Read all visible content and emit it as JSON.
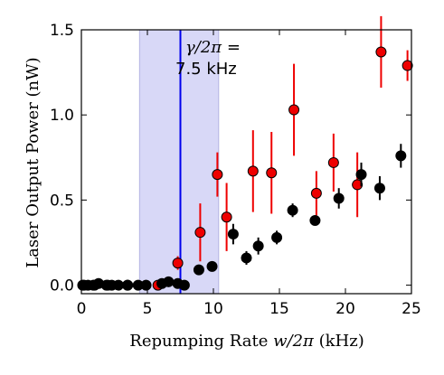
{
  "chart_data": {
    "type": "scatter",
    "xlabel_prefix": "Repumping Rate ",
    "xlabel_math": "w/2π",
    "xlabel_suffix": " (kHz)",
    "ylabel": "Laser Output Power (nW)",
    "xlim": [
      0,
      25
    ],
    "ylim": [
      -0.05,
      1.5
    ],
    "xticks": [
      0,
      5,
      10,
      15,
      20,
      25
    ],
    "xtick_labels": [
      "0",
      "5",
      "10",
      "15",
      "20",
      "25"
    ],
    "yticks": [
      0.0,
      0.5,
      1.0,
      1.5
    ],
    "ytick_labels": [
      "0.0",
      "0.5",
      "1.0",
      "1.5"
    ],
    "shaded_region": {
      "x_start": 4.4,
      "x_end": 10.4,
      "color": "#d8d8f7"
    },
    "vertical_line": {
      "x": 7.5,
      "color": "#0000ee"
    },
    "annotation": {
      "line1_math": "γ/2π",
      "line1_suffix": " =",
      "line2": "7.5 kHz"
    },
    "colors": {
      "red": "#ee0000",
      "black": "#000000",
      "error_red": "#ee0000"
    },
    "series": [
      {
        "color": "red",
        "points": [
          {
            "x": 0.2,
            "y": 0.0,
            "err": 0.0
          },
          {
            "x": 1.0,
            "y": 0.0,
            "err": 0.0
          },
          {
            "x": 2.0,
            "y": 0.0,
            "err": 0.0
          },
          {
            "x": 3.5,
            "y": 0.0,
            "err": 0.0
          },
          {
            "x": 5.8,
            "y": 0.0,
            "err": 0.0
          },
          {
            "x": 7.3,
            "y": 0.13,
            "err": 0.04
          },
          {
            "x": 9.0,
            "y": 0.31,
            "err": 0.17
          },
          {
            "x": 10.3,
            "y": 0.65,
            "err": 0.13
          },
          {
            "x": 11.0,
            "y": 0.4,
            "err": 0.2
          },
          {
            "x": 13.0,
            "y": 0.67,
            "err": 0.24
          },
          {
            "x": 14.4,
            "y": 0.66,
            "err": 0.24
          },
          {
            "x": 16.1,
            "y": 1.03,
            "err": 0.27
          },
          {
            "x": 17.8,
            "y": 0.54,
            "err": 0.13
          },
          {
            "x": 19.1,
            "y": 0.72,
            "err": 0.17
          },
          {
            "x": 20.9,
            "y": 0.59,
            "err": 0.19
          },
          {
            "x": 22.7,
            "y": 1.37,
            "err": 0.21
          },
          {
            "x": 24.7,
            "y": 1.29,
            "err": 0.09
          }
        ]
      },
      {
        "color": "black",
        "points": [
          {
            "x": 0.1,
            "y": 0.0,
            "err": 0.0
          },
          {
            "x": 0.5,
            "y": 0.0,
            "err": 0.0
          },
          {
            "x": 0.9,
            "y": 0.0,
            "err": 0.0
          },
          {
            "x": 1.3,
            "y": 0.01,
            "err": 0.0
          },
          {
            "x": 1.9,
            "y": 0.0,
            "err": 0.0
          },
          {
            "x": 2.3,
            "y": 0.0,
            "err": 0.0
          },
          {
            "x": 2.8,
            "y": 0.0,
            "err": 0.0
          },
          {
            "x": 3.5,
            "y": 0.0,
            "err": 0.0
          },
          {
            "x": 4.3,
            "y": 0.0,
            "err": 0.0
          },
          {
            "x": 4.9,
            "y": 0.0,
            "err": 0.0
          },
          {
            "x": 6.1,
            "y": 0.01,
            "err": 0.0
          },
          {
            "x": 6.6,
            "y": 0.02,
            "err": 0.0
          },
          {
            "x": 7.3,
            "y": 0.01,
            "err": 0.0
          },
          {
            "x": 7.8,
            "y": 0.0,
            "err": 0.0
          },
          {
            "x": 8.9,
            "y": 0.09,
            "err": 0.02
          },
          {
            "x": 9.9,
            "y": 0.11,
            "err": 0.02
          },
          {
            "x": 11.5,
            "y": 0.3,
            "err": 0.06
          },
          {
            "x": 12.5,
            "y": 0.16,
            "err": 0.04
          },
          {
            "x": 13.4,
            "y": 0.23,
            "err": 0.05
          },
          {
            "x": 14.8,
            "y": 0.28,
            "err": 0.04
          },
          {
            "x": 16.0,
            "y": 0.44,
            "err": 0.04
          },
          {
            "x": 17.7,
            "y": 0.38,
            "err": 0.02
          },
          {
            "x": 19.5,
            "y": 0.51,
            "err": 0.06
          },
          {
            "x": 21.2,
            "y": 0.65,
            "err": 0.07
          },
          {
            "x": 22.6,
            "y": 0.57,
            "err": 0.07
          },
          {
            "x": 24.2,
            "y": 0.76,
            "err": 0.07
          }
        ]
      }
    ]
  }
}
